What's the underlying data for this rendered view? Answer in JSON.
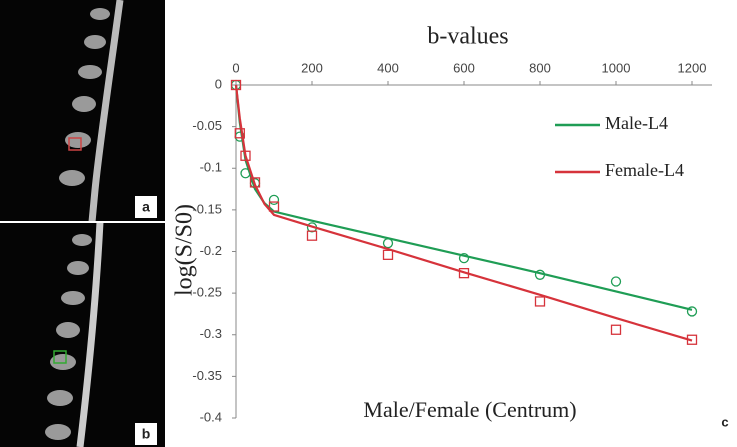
{
  "chart_data": {
    "type": "scatter",
    "x_label": "b-values",
    "y_label": "log(S/S0)",
    "annotation": "Male/Female (Centrum)",
    "panel_labels": [
      "a",
      "b",
      "c"
    ],
    "xlim": [
      0,
      1200
    ],
    "ylim": [
      -0.4,
      0
    ],
    "xticks": [
      0,
      200,
      400,
      600,
      800,
      1000,
      1200
    ],
    "yticks": [
      0,
      -0.05,
      -0.1,
      -0.15,
      -0.2,
      -0.25,
      -0.3,
      -0.35,
      -0.4
    ],
    "legend": "upper right",
    "grid": false,
    "x": [
      0,
      10,
      25,
      50,
      100,
      200,
      400,
      600,
      800,
      1000,
      1200
    ],
    "fit_x": [
      0,
      10,
      25,
      50,
      75,
      100,
      200,
      400,
      600,
      800,
      1000,
      1200
    ],
    "series": [
      {
        "name": "Male-L4",
        "color": "#1f9d55",
        "marker": "circle",
        "values": [
          0,
          -0.062,
          -0.106,
          -0.118,
          -0.138,
          -0.171,
          -0.19,
          -0.208,
          -0.228,
          -0.236,
          -0.272
        ],
        "fit_values": [
          0,
          -0.045,
          -0.09,
          -0.125,
          -0.142,
          -0.152,
          -0.163,
          -0.184,
          -0.205,
          -0.226,
          -0.248,
          -0.27
        ]
      },
      {
        "name": "Female-L4",
        "color": "#d6333b",
        "marker": "square",
        "values": [
          0,
          -0.058,
          -0.085,
          -0.117,
          -0.146,
          -0.181,
          -0.204,
          -0.226,
          -0.26,
          -0.294,
          -0.306
        ],
        "fit_values": [
          0,
          -0.04,
          -0.085,
          -0.12,
          -0.143,
          -0.156,
          -0.17,
          -0.197,
          -0.225,
          -0.252,
          -0.28,
          -0.307
        ]
      }
    ]
  }
}
